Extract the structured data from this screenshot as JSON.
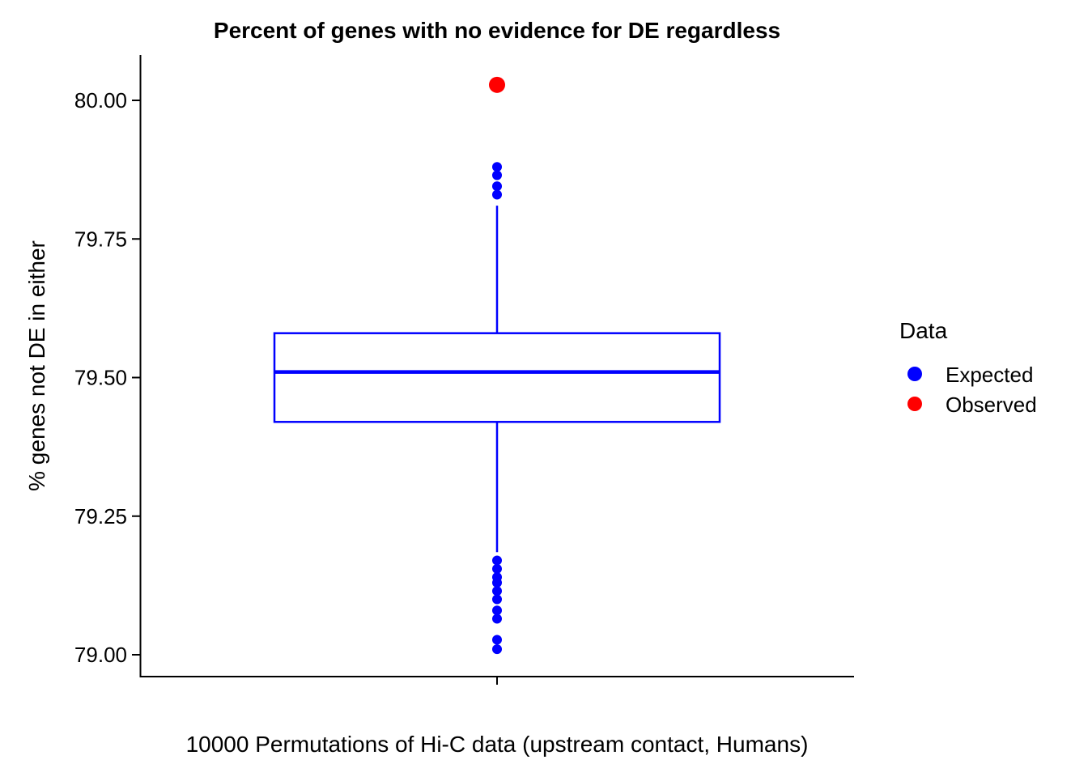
{
  "chart_data": {
    "type": "box",
    "title": "Percent of genes with no evidence for DE regardless",
    "xlabel": "10000 Permutations of Hi-C data (upstream contact, Humans)",
    "ylabel": "% genes not DE in either",
    "ylim": [
      78.96,
      80.08
    ],
    "yticks": [
      79.0,
      79.25,
      79.5,
      79.75,
      80.0
    ],
    "ytick_labels": [
      "79.00",
      "79.25",
      "79.50",
      "79.75",
      "80.00"
    ],
    "grid": false,
    "legend": {
      "title": "Data",
      "position": "right",
      "entries": [
        {
          "label": "Expected",
          "color": "#0000ff"
        },
        {
          "label": "Observed",
          "color": "#ff0000"
        }
      ]
    },
    "box": {
      "series": "Expected",
      "color": "#0000ff",
      "whisker_low": 79.185,
      "q1": 79.42,
      "median": 79.51,
      "q3": 79.58,
      "whisker_high": 79.81,
      "outliers_high": [
        79.83,
        79.845,
        79.865,
        79.88
      ],
      "outliers_low": [
        79.17,
        79.155,
        79.14,
        79.13,
        79.115,
        79.1,
        79.08,
        79.065,
        79.027,
        79.01
      ]
    },
    "observed": {
      "series": "Observed",
      "color": "#ff0000",
      "value": 80.028
    }
  }
}
